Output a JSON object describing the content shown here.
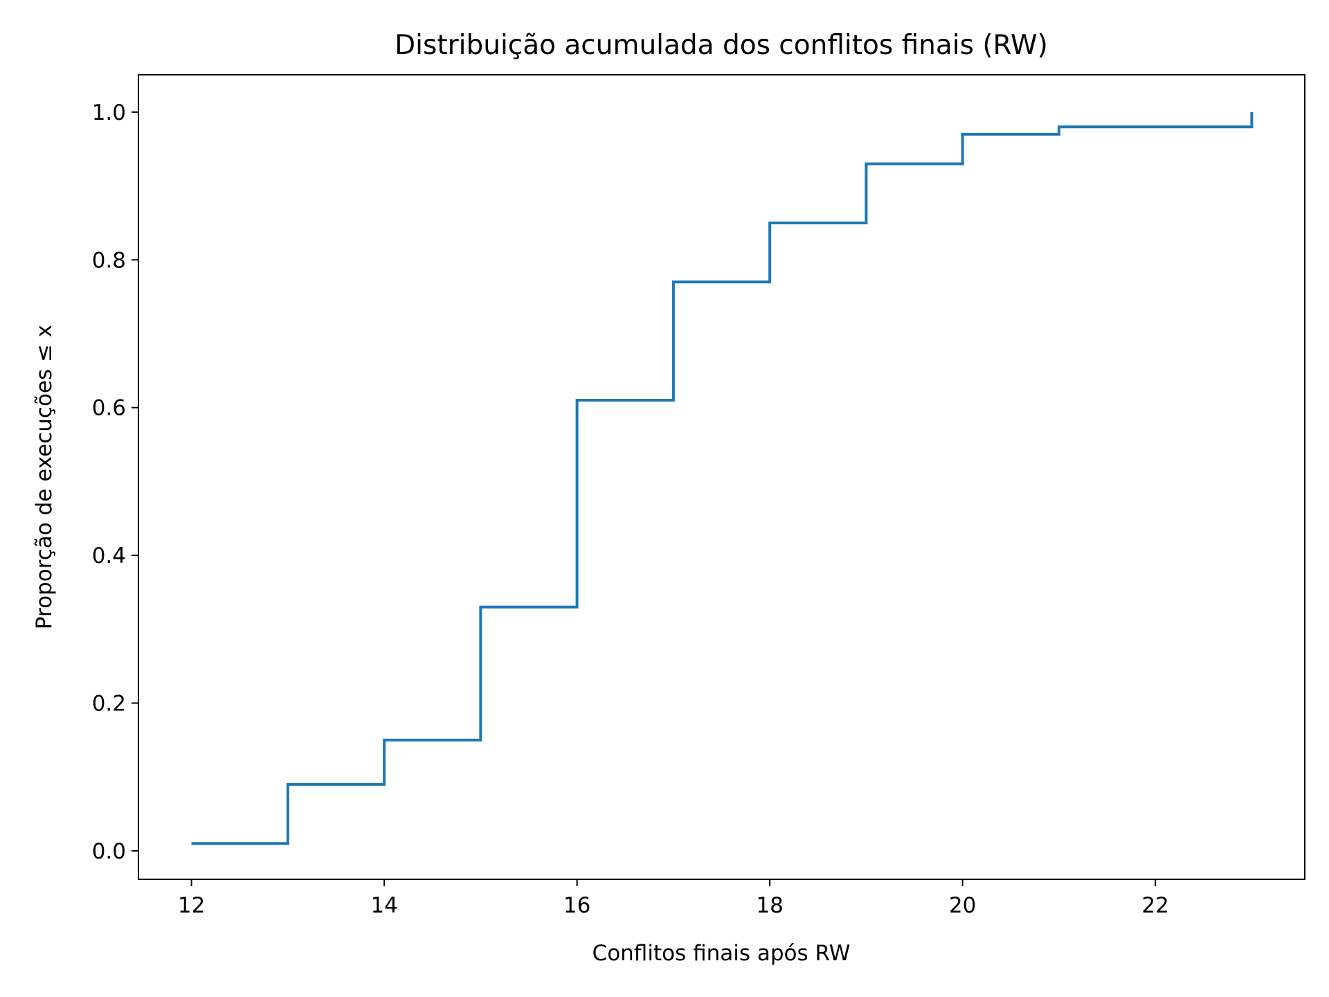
{
  "chart_data": {
    "type": "line",
    "drawstyle": "steps-post",
    "title": "Distribuição acumulada dos conflitos finais (RW)",
    "xlabel": "Conflitos finais após RW",
    "ylabel": "Proporção de execuções ≤ x",
    "xlim": [
      11.45,
      23.55
    ],
    "ylim": [
      -0.0385,
      1.0505
    ],
    "x_ticks": [
      12,
      14,
      16,
      18,
      20,
      22
    ],
    "x_tick_labels": [
      "12",
      "14",
      "16",
      "18",
      "20",
      "22"
    ],
    "y_ticks": [
      0.0,
      0.2,
      0.4,
      0.6,
      0.8,
      1.0
    ],
    "y_tick_labels": [
      "0.0",
      "0.2",
      "0.4",
      "0.6",
      "0.8",
      "1.0"
    ],
    "grid": false,
    "legend": false,
    "series": [
      {
        "color": "#1f77b4",
        "x": [
          12,
          13,
          14,
          15,
          16,
          17,
          18,
          19,
          20,
          21,
          23
        ],
        "y": [
          0.01,
          0.09,
          0.15,
          0.33,
          0.61,
          0.77,
          0.85,
          0.93,
          0.97,
          0.98,
          1.0
        ]
      }
    ]
  }
}
